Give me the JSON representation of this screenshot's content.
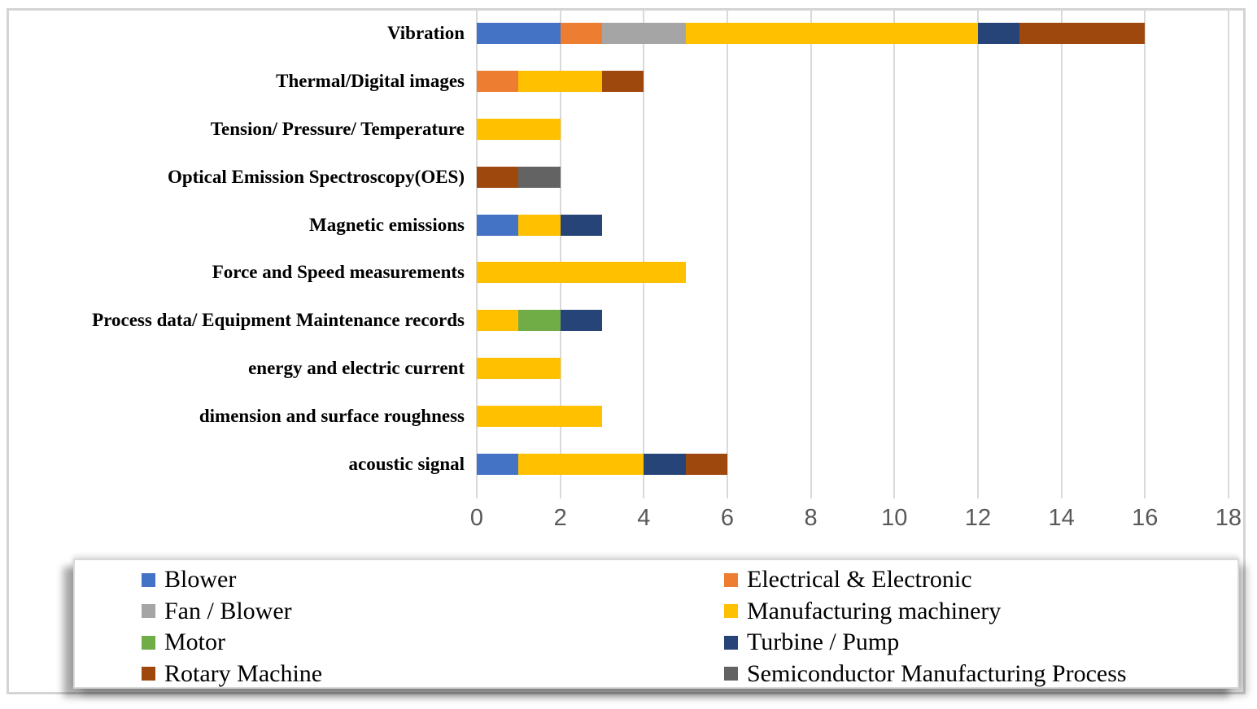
{
  "chart_data": {
    "type": "bar",
    "orientation": "horizontal",
    "stacked": true,
    "title": "",
    "xlabel": "",
    "ylabel": "",
    "xlim": [
      0,
      18
    ],
    "xticks": [
      0,
      2,
      4,
      6,
      8,
      10,
      12,
      14,
      16,
      18
    ],
    "grid": "vertical",
    "categories": [
      "Vibration",
      "Thermal/Digital images",
      "Tension/ Pressure/ Temperature",
      "Optical Emission Spectroscopy(OES)",
      "Magnetic emissions",
      "Force and Speed measurements",
      "Process data/ Equipment Maintenance records",
      "energy and electric current",
      "dimension and surface roughness",
      "acoustic signal"
    ],
    "series": [
      {
        "name": "Blower",
        "color": "#4472C4",
        "values": [
          2,
          0,
          0,
          0,
          1,
          0,
          0,
          0,
          0,
          1
        ]
      },
      {
        "name": "Electrical & Electronic",
        "color": "#ED7D31",
        "values": [
          1,
          1,
          0,
          0,
          0,
          0,
          0,
          0,
          0,
          0
        ]
      },
      {
        "name": "Fan / Blower",
        "color": "#A5A5A5",
        "values": [
          2,
          0,
          0,
          0,
          0,
          0,
          0,
          0,
          0,
          0
        ]
      },
      {
        "name": "Manufacturing machinery",
        "color": "#FFC000",
        "values": [
          7,
          2,
          2,
          0,
          1,
          5,
          1,
          2,
          3,
          3
        ]
      },
      {
        "name": "Motor",
        "color": "#70AD47",
        "values": [
          0,
          0,
          0,
          0,
          0,
          0,
          1,
          0,
          0,
          0
        ]
      },
      {
        "name": "Turbine / Pump",
        "color": "#264478",
        "values": [
          1,
          0,
          0,
          0,
          1,
          0,
          1,
          0,
          0,
          1
        ]
      },
      {
        "name": "Rotary Machine",
        "color": "#9E480E",
        "values": [
          3,
          1,
          0,
          1,
          0,
          0,
          0,
          0,
          0,
          1
        ]
      },
      {
        "name": "Semiconductor Manufacturing Process",
        "color": "#636363",
        "values": [
          0,
          0,
          0,
          1,
          0,
          0,
          0,
          0,
          0,
          0
        ]
      }
    ],
    "totals": [
      16,
      4,
      2,
      2,
      3,
      5,
      3,
      2,
      3,
      6
    ],
    "legend_position": "bottom",
    "legend_columns": [
      [
        "Blower",
        "Fan / Blower",
        "Motor",
        "Rotary Machine"
      ],
      [
        "Electrical & Electronic",
        "Manufacturing machinery",
        "Turbine / Pump",
        "Semiconductor Manufacturing Process"
      ]
    ]
  },
  "style": {
    "gridline_color": "#D9D9D9",
    "tick_label_color": "#595959",
    "category_label_color": "#000000",
    "legend_text_color": "#000000",
    "figure_border_color": "#D4D4D4",
    "background_color": "#FFFFFF"
  }
}
